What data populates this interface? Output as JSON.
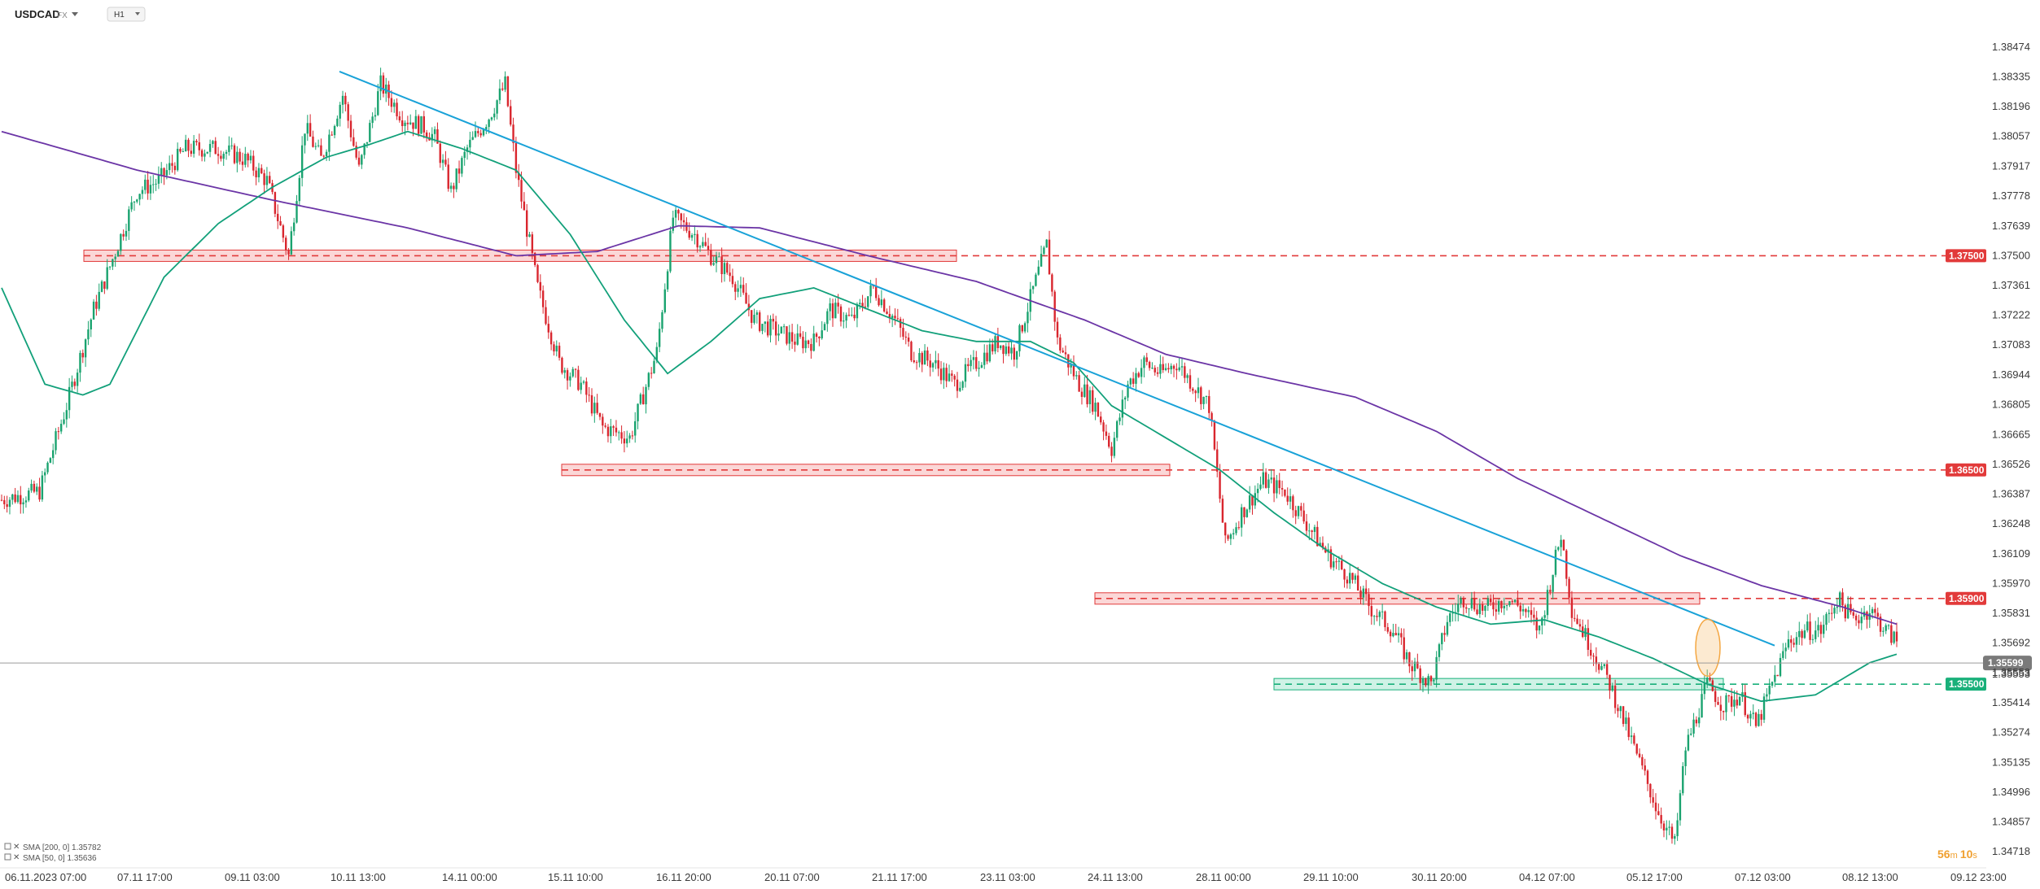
{
  "header": {
    "symbol": "USDCAD",
    "symbol_suffix": "FX",
    "timeframe": "H1"
  },
  "colors": {
    "bull": "#1aa36f",
    "bear": "#d9262e",
    "sma200": "#6b35a6",
    "sma50": "#12a07a",
    "trendline": "#19a2d8",
    "resistance": "#e23a3a",
    "support": "#19b07a",
    "price_badge": "#7a7a7a",
    "highlight": "#f4a742"
  },
  "legend": [
    {
      "label": "SMA [200, 0]",
      "value": "1.35782",
      "color": "#6b35a6"
    },
    {
      "label": "SMA [50, 0]",
      "value": "1.35636",
      "color": "#12a07a"
    }
  ],
  "timer": {
    "minutes": "56",
    "min_unit": "m",
    "seconds": "10",
    "sec_unit": "s"
  },
  "chart_data": {
    "type": "candlestick",
    "title": "",
    "ylim": [
      1.3465,
      1.3858
    ],
    "x_ticks": [
      "06.11.2023 07:00",
      "07.11 17:00",
      "09.11 03:00",
      "10.11 13:00",
      "14.11 00:00",
      "15.11 10:00",
      "16.11 20:00",
      "20.11 07:00",
      "21.11 17:00",
      "23.11 03:00",
      "24.11 13:00",
      "28.11 00:00",
      "29.11 10:00",
      "30.11 20:00",
      "04.12 07:00",
      "05.12 17:00",
      "07.12 03:00",
      "08.12 13:00",
      "09.12 23:00"
    ],
    "y_ticks": [
      "1.38474",
      "1.38335",
      "1.38196",
      "1.38057",
      "1.37917",
      "1.37778",
      "1.37639",
      "1.37500",
      "1.37361",
      "1.37222",
      "1.37083",
      "1.36944",
      "1.36805",
      "1.36665",
      "1.36526",
      "1.36387",
      "1.36248",
      "1.36109",
      "1.35970",
      "1.35831",
      "1.35692",
      "1.35553",
      "1.35414",
      "1.35274",
      "1.35135",
      "1.34996",
      "1.34857",
      "1.34718"
    ],
    "price_levels": [
      {
        "name": "resistance-1",
        "value": "1.37500",
        "kind": "resistance",
        "zone_from": "07.11",
        "zone_to": "22.11"
      },
      {
        "name": "resistance-2",
        "value": "1.36500",
        "kind": "resistance",
        "zone_from": "15.11",
        "zone_to": "24.11"
      },
      {
        "name": "resistance-3",
        "value": "1.35900",
        "kind": "resistance",
        "zone_from": "24.11",
        "zone_to": "06.12"
      },
      {
        "name": "support-1",
        "value": "1.35500",
        "kind": "support",
        "zone_from": "28.11",
        "zone_to": "06.12"
      }
    ],
    "current_price": "1.35599",
    "current_price_below": "1.35553",
    "trendline": {
      "start": {
        "date": "10.11 13:00",
        "price": 1.3836
      },
      "end": {
        "date": "06.12",
        "price": 1.3568
      }
    },
    "series": [
      {
        "name": "SMA [200, 0]",
        "type": "line"
      },
      {
        "name": "SMA [50, 0]",
        "type": "line"
      }
    ],
    "candles_close_path": [
      [
        0,
        1.3636
      ],
      [
        14,
        1.364
      ],
      [
        24,
        1.368
      ],
      [
        34,
        1.3725
      ],
      [
        40,
        1.3745
      ],
      [
        50,
        1.378
      ],
      [
        58,
        1.3785
      ],
      [
        68,
        1.38
      ],
      [
        80,
        1.38
      ],
      [
        90,
        1.3795
      ],
      [
        98,
        1.3785
      ],
      [
        106,
        1.375
      ],
      [
        112,
        1.381
      ],
      [
        118,
        1.3795
      ],
      [
        126,
        1.3825
      ],
      [
        132,
        1.379
      ],
      [
        140,
        1.383
      ],
      [
        148,
        1.3815
      ],
      [
        156,
        1.381
      ],
      [
        160,
        1.3805
      ],
      [
        166,
        1.378
      ],
      [
        172,
        1.38
      ],
      [
        180,
        1.3815
      ],
      [
        186,
        1.383
      ],
      [
        190,
        1.379
      ],
      [
        198,
        1.3735
      ],
      [
        206,
        1.37
      ],
      [
        214,
        1.369
      ],
      [
        222,
        1.367
      ],
      [
        232,
        1.3665
      ],
      [
        242,
        1.3705
      ],
      [
        248,
        1.3768
      ],
      [
        256,
        1.376
      ],
      [
        262,
        1.375
      ],
      [
        270,
        1.374
      ],
      [
        278,
        1.372
      ],
      [
        286,
        1.3715
      ],
      [
        294,
        1.371
      ],
      [
        300,
        1.371
      ],
      [
        306,
        1.3725
      ],
      [
        314,
        1.372
      ],
      [
        322,
        1.3735
      ],
      [
        330,
        1.372
      ],
      [
        336,
        1.3705
      ],
      [
        344,
        1.37
      ],
      [
        352,
        1.369
      ],
      [
        360,
        1.37
      ],
      [
        368,
        1.371
      ],
      [
        374,
        1.3705
      ],
      [
        380,
        1.373
      ],
      [
        386,
        1.3755
      ],
      [
        390,
        1.371
      ],
      [
        398,
        1.369
      ],
      [
        404,
        1.368
      ],
      [
        410,
        1.366
      ],
      [
        416,
        1.369
      ],
      [
        422,
        1.37
      ],
      [
        428,
        1.3695
      ],
      [
        434,
        1.37
      ],
      [
        440,
        1.369
      ],
      [
        446,
        1.368
      ],
      [
        452,
        1.3615
      ],
      [
        458,
        1.363
      ],
      [
        466,
        1.3645
      ],
      [
        474,
        1.364
      ],
      [
        482,
        1.3625
      ],
      [
        490,
        1.361
      ],
      [
        498,
        1.36
      ],
      [
        506,
        1.3585
      ],
      [
        514,
        1.3575
      ],
      [
        520,
        1.356
      ],
      [
        528,
        1.355
      ],
      [
        534,
        1.358
      ],
      [
        540,
        1.359
      ],
      [
        548,
        1.3585
      ],
      [
        556,
        1.359
      ],
      [
        562,
        1.3585
      ],
      [
        568,
        1.3575
      ],
      [
        576,
        1.362
      ],
      [
        580,
        1.3585
      ],
      [
        586,
        1.357
      ],
      [
        594,
        1.355
      ],
      [
        600,
        1.353
      ],
      [
        606,
        1.351
      ],
      [
        612,
        1.349
      ],
      [
        618,
        1.3475
      ],
      [
        622,
        1.352
      ],
      [
        630,
        1.355
      ],
      [
        636,
        1.354
      ],
      [
        642,
        1.3545
      ],
      [
        648,
        1.353
      ],
      [
        654,
        1.355
      ],
      [
        660,
        1.357
      ],
      [
        666,
        1.3575
      ],
      [
        672,
        1.3575
      ],
      [
        678,
        1.359
      ],
      [
        684,
        1.358
      ],
      [
        690,
        1.3585
      ],
      [
        696,
        1.3575
      ],
      [
        700,
        1.357
      ]
    ],
    "sma200_path": [
      [
        0,
        1.3808
      ],
      [
        50,
        1.379
      ],
      [
        100,
        1.3776
      ],
      [
        150,
        1.3763
      ],
      [
        190,
        1.375
      ],
      [
        220,
        1.3752
      ],
      [
        250,
        1.3764
      ],
      [
        280,
        1.3763
      ],
      [
        320,
        1.375
      ],
      [
        360,
        1.3738
      ],
      [
        400,
        1.372
      ],
      [
        430,
        1.3704
      ],
      [
        460,
        1.3695
      ],
      [
        500,
        1.3684
      ],
      [
        530,
        1.3668
      ],
      [
        560,
        1.3646
      ],
      [
        590,
        1.3628
      ],
      [
        620,
        1.361
      ],
      [
        650,
        1.3596
      ],
      [
        680,
        1.3586
      ],
      [
        700,
        1.3578
      ]
    ],
    "sma50_path": [
      [
        0,
        1.3735
      ],
      [
        16,
        1.369
      ],
      [
        30,
        1.3685
      ],
      [
        40,
        1.369
      ],
      [
        60,
        1.374
      ],
      [
        80,
        1.3765
      ],
      [
        100,
        1.3782
      ],
      [
        120,
        1.3796
      ],
      [
        136,
        1.3802
      ],
      [
        150,
        1.3808
      ],
      [
        170,
        1.38
      ],
      [
        190,
        1.379
      ],
      [
        210,
        1.376
      ],
      [
        230,
        1.372
      ],
      [
        246,
        1.3695
      ],
      [
        262,
        1.371
      ],
      [
        280,
        1.373
      ],
      [
        300,
        1.3735
      ],
      [
        320,
        1.3725
      ],
      [
        340,
        1.3715
      ],
      [
        360,
        1.371
      ],
      [
        380,
        1.371
      ],
      [
        396,
        1.37
      ],
      [
        410,
        1.368
      ],
      [
        430,
        1.3665
      ],
      [
        450,
        1.365
      ],
      [
        470,
        1.363
      ],
      [
        490,
        1.3612
      ],
      [
        510,
        1.3597
      ],
      [
        530,
        1.3586
      ],
      [
        550,
        1.3578
      ],
      [
        570,
        1.358
      ],
      [
        590,
        1.3572
      ],
      [
        610,
        1.3562
      ],
      [
        630,
        1.355
      ],
      [
        650,
        1.3542
      ],
      [
        670,
        1.3545
      ],
      [
        690,
        1.356
      ],
      [
        700,
        1.3564
      ]
    ]
  }
}
